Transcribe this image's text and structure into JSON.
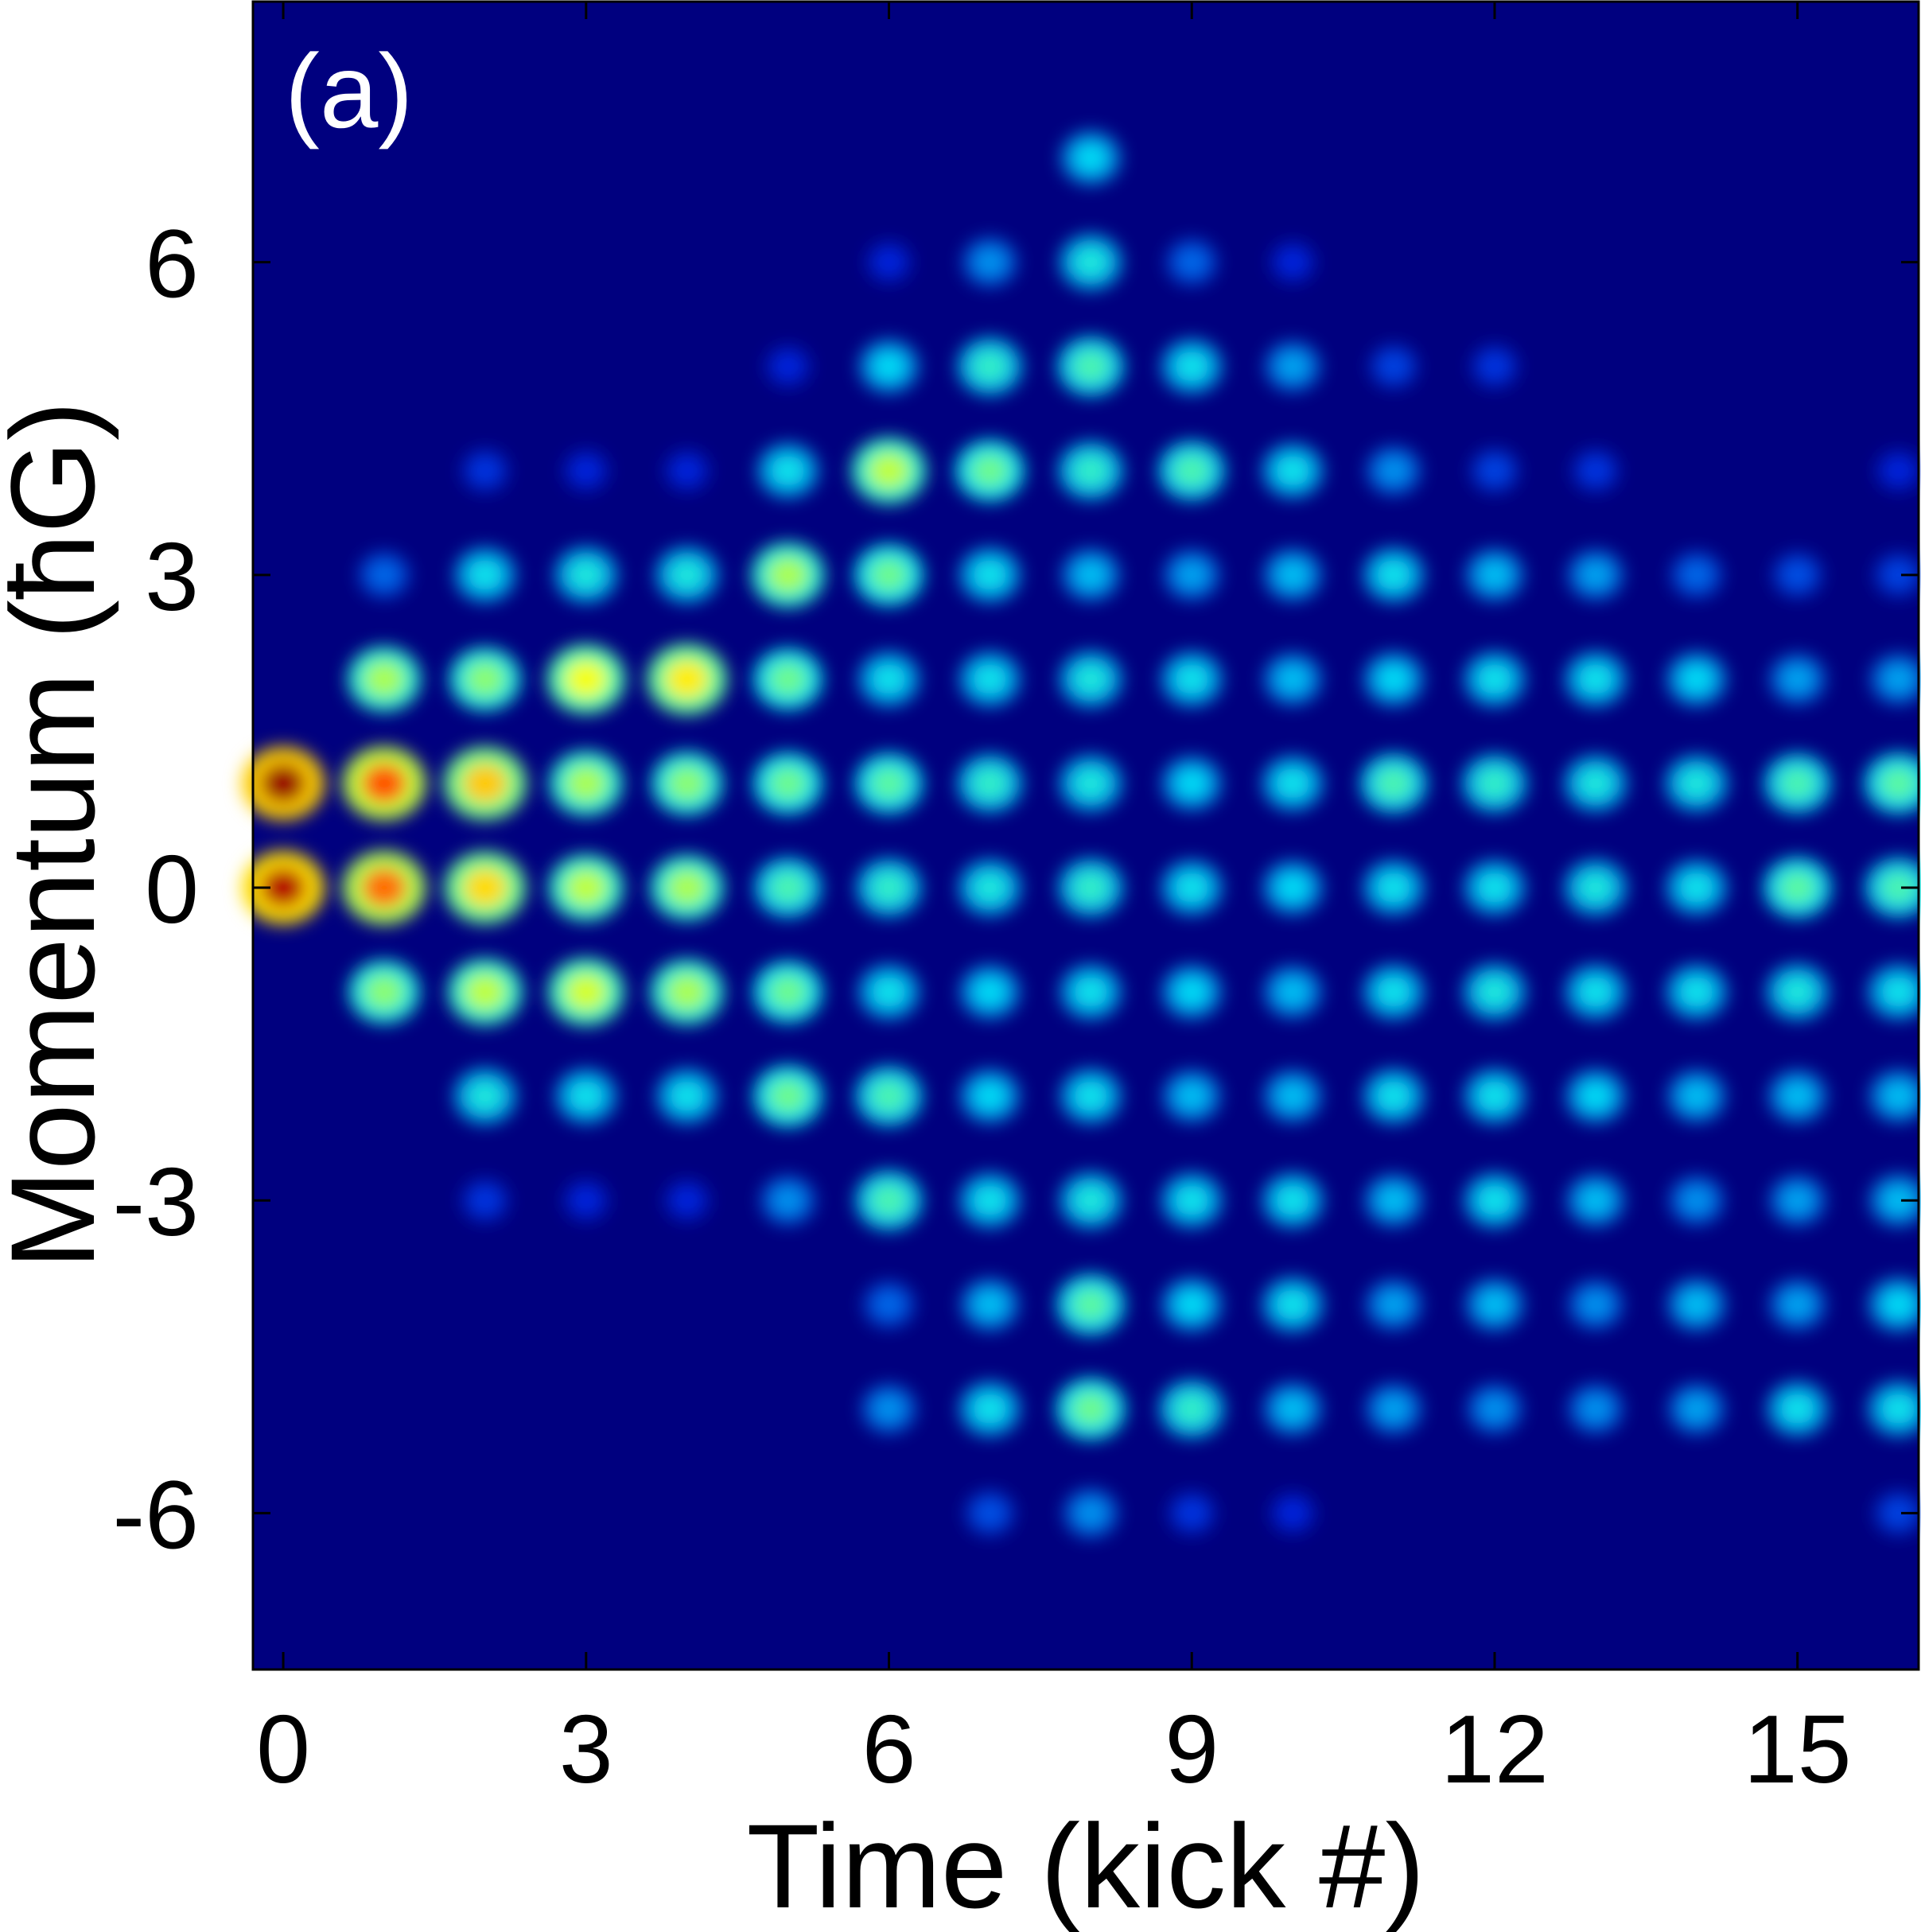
{
  "panel_label": "(a)",
  "chart_data": {
    "type": "heatmap",
    "title": "",
    "xlabel": "Time (kick #)",
    "ylabel": "Momentum (ħG)",
    "xlim": [
      -0.3,
      16.2
    ],
    "ylim": [
      -7.5,
      8.5
    ],
    "x_ticks": [
      0,
      3,
      6,
      9,
      12,
      15
    ],
    "x_tick_labels": [
      "0",
      "3",
      "6",
      "9",
      "12",
      "15"
    ],
    "y_ticks": [
      -6,
      -3,
      0,
      3,
      6
    ],
    "y_tick_labels": [
      "-6",
      "-3",
      "0",
      "3",
      "6"
    ],
    "colormap": "jet",
    "grid": false,
    "legend": "none",
    "kicks": [
      0,
      1,
      2,
      3,
      4,
      5,
      6,
      7,
      8,
      9,
      10,
      11,
      12,
      13,
      14,
      15,
      16
    ],
    "momentum_orders": [
      -6,
      -5,
      -4,
      -3,
      -2,
      -1,
      0,
      1,
      2,
      3,
      4,
      5,
      6,
      7
    ],
    "intensity_rows": [
      [
        0.0,
        0.0,
        0.0,
        0.0,
        0.0,
        0.0,
        0.0,
        0.0,
        0.28,
        0.0,
        0.0,
        0.0,
        0.0,
        0.0,
        0.0,
        0.0,
        0.0
      ],
      [
        0.0,
        0.0,
        0.0,
        0.0,
        0.0,
        0.0,
        0.05,
        0.2,
        0.32,
        0.15,
        0.05,
        0.0,
        0.0,
        0.0,
        0.0,
        0.0,
        0.0
      ],
      [
        0.0,
        0.0,
        0.0,
        0.0,
        0.0,
        0.05,
        0.28,
        0.35,
        0.38,
        0.3,
        0.22,
        0.1,
        0.08,
        0.0,
        0.0,
        0.0,
        0.0
      ],
      [
        0.0,
        0.0,
        0.08,
        0.05,
        0.05,
        0.3,
        0.5,
        0.42,
        0.35,
        0.38,
        0.3,
        0.2,
        0.1,
        0.08,
        0.0,
        0.0,
        0.05
      ],
      [
        0.0,
        0.15,
        0.3,
        0.32,
        0.32,
        0.48,
        0.42,
        0.3,
        0.25,
        0.22,
        0.25,
        0.3,
        0.25,
        0.22,
        0.15,
        0.12,
        0.1
      ],
      [
        0.0,
        0.48,
        0.45,
        0.55,
        0.58,
        0.42,
        0.3,
        0.3,
        0.32,
        0.3,
        0.25,
        0.28,
        0.3,
        0.3,
        0.28,
        0.22,
        0.22
      ],
      [
        0.95,
        0.75,
        0.62,
        0.48,
        0.45,
        0.42,
        0.4,
        0.35,
        0.32,
        0.28,
        0.3,
        0.38,
        0.35,
        0.32,
        0.32,
        0.38,
        0.4
      ],
      [
        0.92,
        0.72,
        0.6,
        0.5,
        0.48,
        0.38,
        0.35,
        0.32,
        0.35,
        0.3,
        0.28,
        0.3,
        0.3,
        0.32,
        0.3,
        0.4,
        0.38
      ],
      [
        0.0,
        0.45,
        0.5,
        0.52,
        0.48,
        0.42,
        0.3,
        0.28,
        0.3,
        0.28,
        0.25,
        0.3,
        0.32,
        0.3,
        0.3,
        0.32,
        0.3
      ],
      [
        0.0,
        0.0,
        0.32,
        0.3,
        0.3,
        0.42,
        0.38,
        0.28,
        0.3,
        0.25,
        0.25,
        0.3,
        0.3,
        0.28,
        0.25,
        0.25,
        0.25
      ],
      [
        0.0,
        0.0,
        0.08,
        0.05,
        0.05,
        0.2,
        0.38,
        0.3,
        0.32,
        0.3,
        0.3,
        0.25,
        0.3,
        0.25,
        0.2,
        0.22,
        0.25
      ],
      [
        0.0,
        0.0,
        0.0,
        0.0,
        0.0,
        0.0,
        0.15,
        0.25,
        0.4,
        0.28,
        0.3,
        0.22,
        0.25,
        0.2,
        0.25,
        0.22,
        0.28
      ],
      [
        0.0,
        0.0,
        0.0,
        0.0,
        0.0,
        0.0,
        0.2,
        0.3,
        0.42,
        0.35,
        0.25,
        0.22,
        0.2,
        0.2,
        0.22,
        0.3,
        0.3
      ],
      [
        0.0,
        0.0,
        0.0,
        0.0,
        0.0,
        0.0,
        0.0,
        0.12,
        0.2,
        0.08,
        0.05,
        0.0,
        0.0,
        0.0,
        0.0,
        0.0,
        0.1
      ]
    ]
  }
}
